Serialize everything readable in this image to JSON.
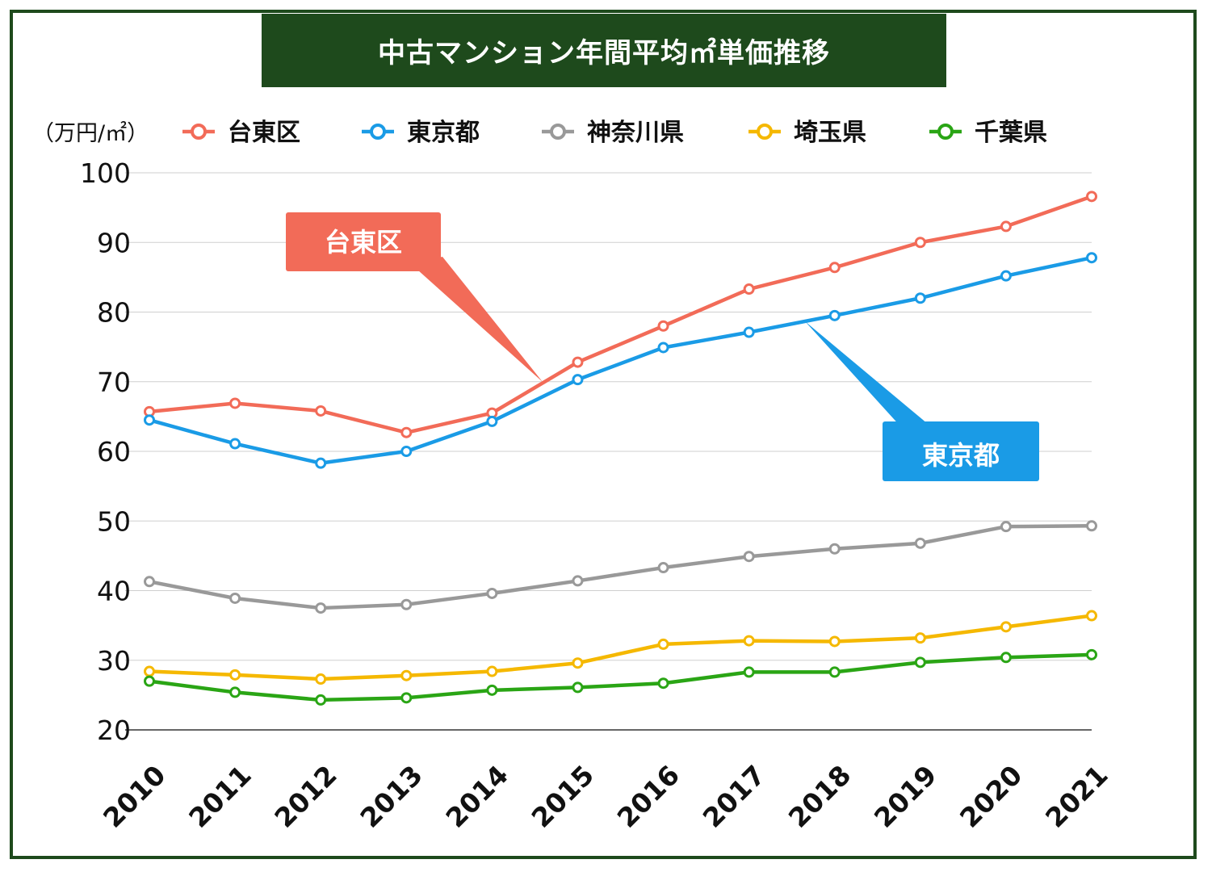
{
  "chart_data": {
    "type": "line",
    "title": "中古マンション年間平均㎡単価推移",
    "ylabel": "（万円/㎡）",
    "xlabel": "",
    "ylim": [
      20,
      100
    ],
    "yticks": [
      20,
      30,
      40,
      50,
      60,
      70,
      80,
      90,
      100
    ],
    "categories": [
      "2010",
      "2011",
      "2012",
      "2013",
      "2014",
      "2015",
      "2016",
      "2017",
      "2018",
      "2019",
      "2020",
      "2021"
    ],
    "series": [
      {
        "name": "台東区",
        "color": "#f26b58",
        "values": [
          65.7,
          66.9,
          65.8,
          62.7,
          65.5,
          72.8,
          78.0,
          83.3,
          86.4,
          90.0,
          92.3,
          96.6
        ]
      },
      {
        "name": "東京都",
        "color": "#1a9be6",
        "values": [
          64.5,
          61.1,
          58.3,
          60.0,
          64.3,
          70.3,
          74.9,
          77.1,
          79.5,
          82.0,
          85.2,
          87.8
        ]
      },
      {
        "name": "神奈川県",
        "color": "#999999",
        "values": [
          41.3,
          38.9,
          37.5,
          38.0,
          39.6,
          41.4,
          43.3,
          44.9,
          46.0,
          46.8,
          49.2,
          49.3
        ]
      },
      {
        "name": "埼玉県",
        "color": "#f5b800",
        "values": [
          28.4,
          27.9,
          27.3,
          27.8,
          28.4,
          29.6,
          32.3,
          32.8,
          32.7,
          33.2,
          34.8,
          36.4
        ]
      },
      {
        "name": "千葉県",
        "color": "#2aa515",
        "values": [
          27.0,
          25.4,
          24.3,
          24.6,
          25.7,
          26.1,
          26.7,
          28.3,
          28.3,
          29.7,
          30.4,
          30.8
        ]
      }
    ],
    "annotations": [
      {
        "text": "台東区",
        "series": "台東区",
        "color": "#f26b58"
      },
      {
        "text": "東京都",
        "series": "東京都",
        "color": "#1a9be6"
      }
    ]
  }
}
